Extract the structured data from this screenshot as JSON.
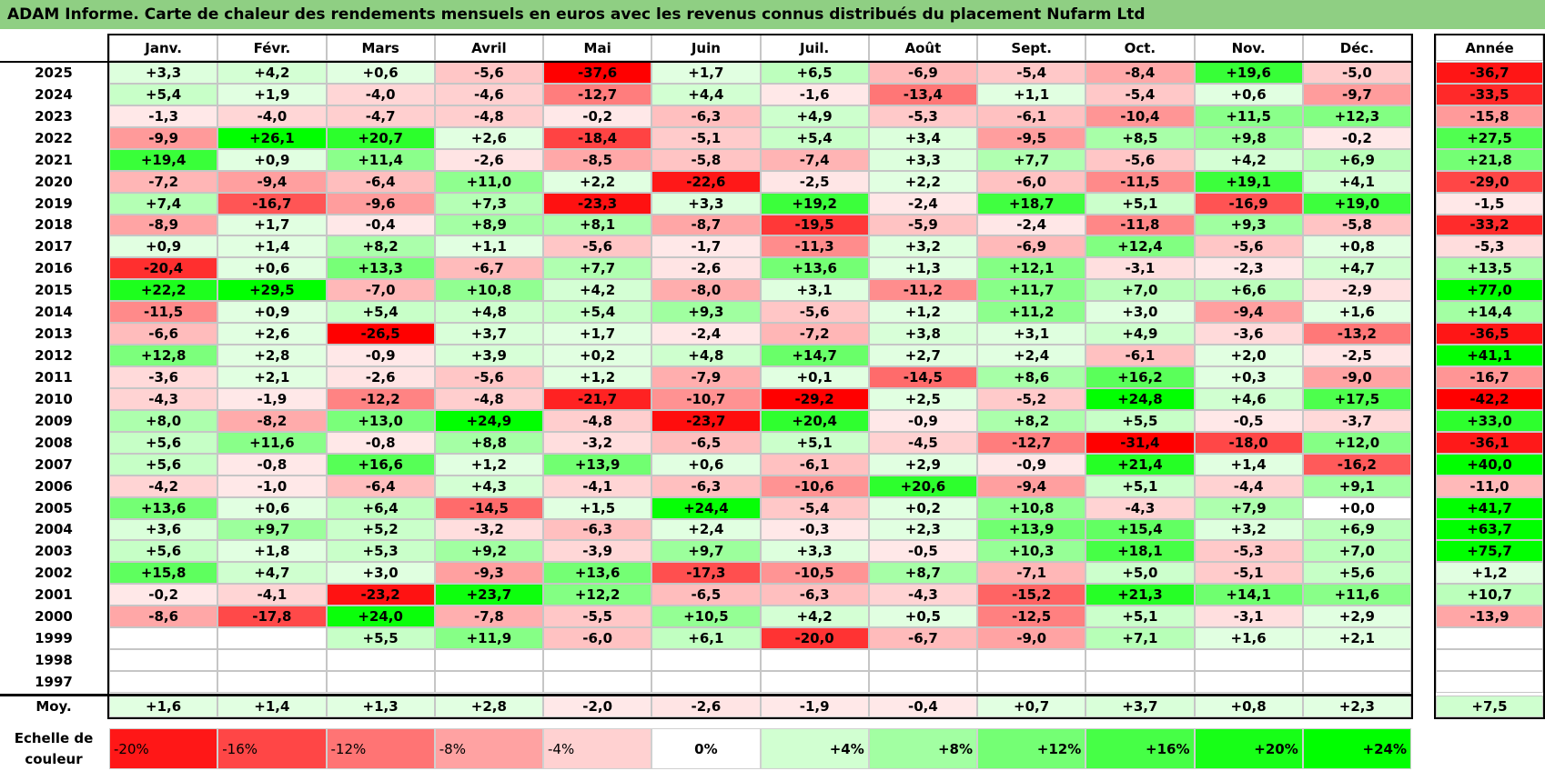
{
  "title": "ADAM Informe. Carte de chaleur des rendements mensuels en euros avec les revenus connus distribués du placement Nufarm Ltd",
  "chart_data": {
    "type": "heatmap",
    "columns": [
      "Janv.",
      "Févr.",
      "Mars",
      "Avril",
      "Mai",
      "Juin",
      "Juil.",
      "Août",
      "Sept.",
      "Oct.",
      "Nov.",
      "Déc."
    ],
    "year_column_label": "Année",
    "rows": [
      {
        "year": "2025",
        "values": [
          "+3,3",
          "+4,2",
          "+0,6",
          "-5,6",
          "-37,6",
          "+1,7",
          "+6,5",
          "-6,9",
          "-5,4",
          "-8,4",
          "+19,6",
          "-5,0"
        ],
        "annual": "-36,7"
      },
      {
        "year": "2024",
        "values": [
          "+5,4",
          "+1,9",
          "-4,0",
          "-4,6",
          "-12,7",
          "+4,4",
          "-1,6",
          "-13,4",
          "+1,1",
          "-5,4",
          "+0,6",
          "-9,7"
        ],
        "annual": "-33,5"
      },
      {
        "year": "2023",
        "values": [
          "-1,3",
          "-4,0",
          "-4,7",
          "-4,8",
          "-0,2",
          "-6,3",
          "+4,9",
          "-5,3",
          "-6,1",
          "-10,4",
          "+11,5",
          "+12,3"
        ],
        "annual": "-15,8"
      },
      {
        "year": "2022",
        "values": [
          "-9,9",
          "+26,1",
          "+20,7",
          "+2,6",
          "-18,4",
          "-5,1",
          "+5,4",
          "+3,4",
          "-9,5",
          "+8,5",
          "+9,8",
          "-0,2"
        ],
        "annual": "+27,5"
      },
      {
        "year": "2021",
        "values": [
          "+19,4",
          "+0,9",
          "+11,4",
          "-2,6",
          "-8,5",
          "-5,8",
          "-7,4",
          "+3,3",
          "+7,7",
          "-5,6",
          "+4,2",
          "+6,9"
        ],
        "annual": "+21,8"
      },
      {
        "year": "2020",
        "values": [
          "-7,2",
          "-9,4",
          "-6,4",
          "+11,0",
          "+2,2",
          "-22,6",
          "-2,5",
          "+2,2",
          "-6,0",
          "-11,5",
          "+19,1",
          "+4,1"
        ],
        "annual": "-29,0"
      },
      {
        "year": "2019",
        "values": [
          "+7,4",
          "-16,7",
          "-9,6",
          "+7,3",
          "-23,3",
          "+3,3",
          "+19,2",
          "-2,4",
          "+18,7",
          "+5,1",
          "-16,9",
          "+19,0"
        ],
        "annual": "-1,5"
      },
      {
        "year": "2018",
        "values": [
          "-8,9",
          "+1,7",
          "-0,4",
          "+8,9",
          "+8,1",
          "-8,7",
          "-19,5",
          "-5,9",
          "-2,4",
          "-11,8",
          "+9,3",
          "-5,8"
        ],
        "annual": "-33,2"
      },
      {
        "year": "2017",
        "values": [
          "+0,9",
          "+1,4",
          "+8,2",
          "+1,1",
          "-5,6",
          "-1,7",
          "-11,3",
          "+3,2",
          "-6,9",
          "+12,4",
          "-5,6",
          "+0,8"
        ],
        "annual": "-5,3"
      },
      {
        "year": "2016",
        "values": [
          "-20,4",
          "+0,6",
          "+13,3",
          "-6,7",
          "+7,7",
          "-2,6",
          "+13,6",
          "+1,3",
          "+12,1",
          "-3,1",
          "-2,3",
          "+4,7"
        ],
        "annual": "+13,5"
      },
      {
        "year": "2015",
        "values": [
          "+22,2",
          "+29,5",
          "-7,0",
          "+10,8",
          "+4,2",
          "-8,0",
          "+3,1",
          "-11,2",
          "+11,7",
          "+7,0",
          "+6,6",
          "-2,9"
        ],
        "annual": "+77,0"
      },
      {
        "year": "2014",
        "values": [
          "-11,5",
          "+0,9",
          "+5,4",
          "+4,8",
          "+5,4",
          "+9,3",
          "-5,6",
          "+1,2",
          "+11,2",
          "+3,0",
          "-9,4",
          "+1,6"
        ],
        "annual": "+14,4"
      },
      {
        "year": "2013",
        "values": [
          "-6,6",
          "+2,6",
          "-26,5",
          "+3,7",
          "+1,7",
          "-2,4",
          "-7,2",
          "+3,8",
          "+3,1",
          "+4,9",
          "-3,6",
          "-13,2"
        ],
        "annual": "-36,5"
      },
      {
        "year": "2012",
        "values": [
          "+12,8",
          "+2,8",
          "-0,9",
          "+3,9",
          "+0,2",
          "+4,8",
          "+14,7",
          "+2,7",
          "+2,4",
          "-6,1",
          "+2,0",
          "-2,5"
        ],
        "annual": "+41,1"
      },
      {
        "year": "2011",
        "values": [
          "-3,6",
          "+2,1",
          "-2,6",
          "-5,6",
          "+1,2",
          "-7,9",
          "+0,1",
          "-14,5",
          "+8,6",
          "+16,2",
          "+0,3",
          "-9,0"
        ],
        "annual": "-16,7"
      },
      {
        "year": "2010",
        "values": [
          "-4,3",
          "-1,9",
          "-12,2",
          "-4,8",
          "-21,7",
          "-10,7",
          "-29,2",
          "+2,5",
          "-5,2",
          "+24,8",
          "+4,6",
          "+17,5"
        ],
        "annual": "-42,2"
      },
      {
        "year": "2009",
        "values": [
          "+8,0",
          "-8,2",
          "+13,0",
          "+24,9",
          "-4,8",
          "-23,7",
          "+20,4",
          "-0,9",
          "+8,2",
          "+5,5",
          "-0,5",
          "-3,7"
        ],
        "annual": "+33,0"
      },
      {
        "year": "2008",
        "values": [
          "+5,6",
          "+11,6",
          "-0,8",
          "+8,8",
          "-3,2",
          "-6,5",
          "+5,1",
          "-4,5",
          "-12,7",
          "-31,4",
          "-18,0",
          "+12,0"
        ],
        "annual": "-36,1"
      },
      {
        "year": "2007",
        "values": [
          "+5,6",
          "-0,8",
          "+16,6",
          "+1,2",
          "+13,9",
          "+0,6",
          "-6,1",
          "+2,9",
          "-0,9",
          "+21,4",
          "+1,4",
          "-16,2"
        ],
        "annual": "+40,0"
      },
      {
        "year": "2006",
        "values": [
          "-4,2",
          "-1,0",
          "-6,4",
          "+4,3",
          "-4,1",
          "-6,3",
          "-10,6",
          "+20,6",
          "-9,4",
          "+5,1",
          "-4,4",
          "+9,1"
        ],
        "annual": "-11,0"
      },
      {
        "year": "2005",
        "values": [
          "+13,6",
          "+0,6",
          "+6,4",
          "-14,5",
          "+1,5",
          "+24,4",
          "-5,4",
          "+0,2",
          "+10,8",
          "-4,3",
          "+7,9",
          "+0,0"
        ],
        "annual": "+41,7"
      },
      {
        "year": "2004",
        "values": [
          "+3,6",
          "+9,7",
          "+5,2",
          "-3,2",
          "-6,3",
          "+2,4",
          "-0,3",
          "+2,3",
          "+13,9",
          "+15,4",
          "+3,2",
          "+6,9"
        ],
        "annual": "+63,7"
      },
      {
        "year": "2003",
        "values": [
          "+5,6",
          "+1,8",
          "+5,3",
          "+9,2",
          "-3,9",
          "+9,7",
          "+3,3",
          "-0,5",
          "+10,3",
          "+18,1",
          "-5,3",
          "+7,0"
        ],
        "annual": "+75,7"
      },
      {
        "year": "2002",
        "values": [
          "+15,8",
          "+4,7",
          "+3,0",
          "-9,3",
          "+13,6",
          "-17,3",
          "-10,5",
          "+8,7",
          "-7,1",
          "+5,0",
          "-5,1",
          "+5,6"
        ],
        "annual": "+1,2"
      },
      {
        "year": "2001",
        "values": [
          "-0,2",
          "-4,1",
          "-23,2",
          "+23,7",
          "+12,2",
          "-6,5",
          "-6,3",
          "-4,3",
          "-15,2",
          "+21,3",
          "+14,1",
          "+11,6"
        ],
        "annual": "+10,7"
      },
      {
        "year": "2000",
        "values": [
          "-8,6",
          "-17,8",
          "+24,0",
          "-7,8",
          "-5,5",
          "+10,5",
          "+4,2",
          "+0,5",
          "-12,5",
          "+5,1",
          "-3,1",
          "+2,9"
        ],
        "annual": "-13,9"
      },
      {
        "year": "1999",
        "values": [
          "",
          "",
          "+5,5",
          "+11,9",
          "-6,0",
          "+6,1",
          "-20,0",
          "-6,7",
          "-9,0",
          "+7,1",
          "+1,6",
          "+2,1"
        ],
        "annual": ""
      },
      {
        "year": "1998",
        "values": [
          "",
          "",
          "",
          "",
          "",
          "",
          "",
          "",
          "",
          "",
          "",
          ""
        ],
        "annual": ""
      },
      {
        "year": "1997",
        "values": [
          "",
          "",
          "",
          "",
          "",
          "",
          "",
          "",
          "",
          "",
          "",
          ""
        ],
        "annual": ""
      }
    ],
    "average": {
      "label": "Moy.",
      "values": [
        "+1,6",
        "+1,4",
        "+1,3",
        "+2,8",
        "-2,0",
        "-2,6",
        "-1,9",
        "-0,4",
        "+0,7",
        "+3,7",
        "+0,8",
        "+2,3"
      ],
      "annual": "+7,5"
    },
    "scale": {
      "label_line1": "Echelle de",
      "label_line2": "couleur",
      "stops": [
        "-20%",
        "-16%",
        "-12%",
        "-8%",
        "-4%",
        "0%",
        "+4%",
        "+8%",
        "+12%",
        "+16%",
        "+20%",
        "+24%"
      ]
    },
    "colors": {
      "negative_max": "#ff0000",
      "neutral": "#ffffff",
      "positive_max": "#00ff00",
      "title_bar": "#8fcf83"
    }
  }
}
